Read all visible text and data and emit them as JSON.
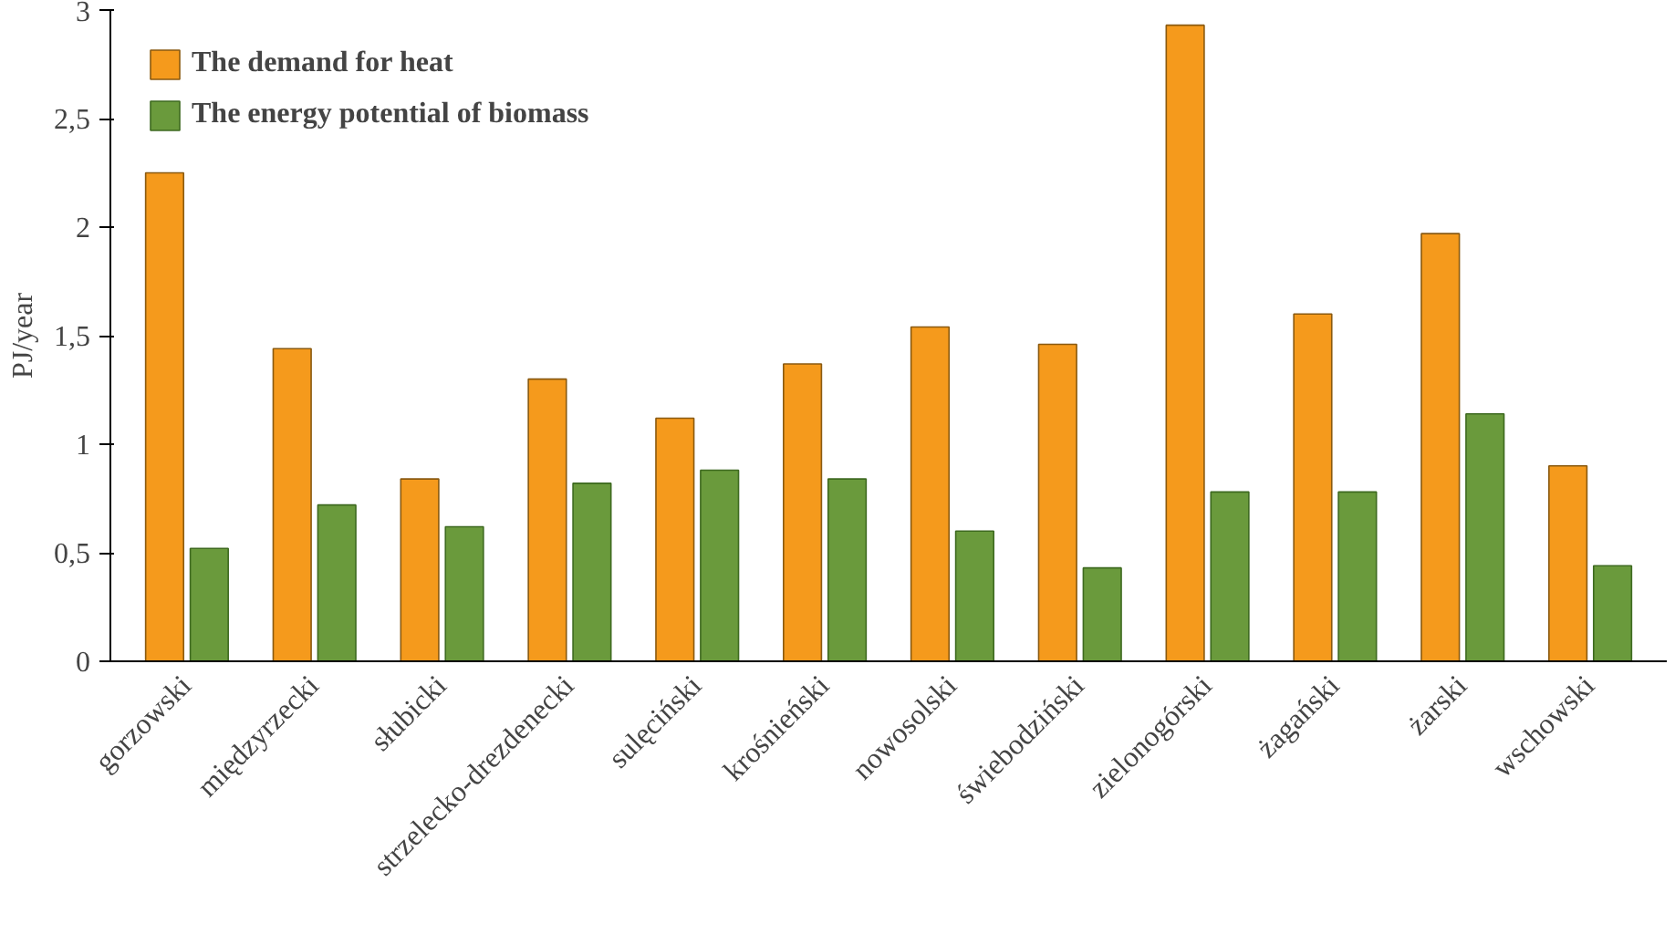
{
  "chart_data": {
    "type": "bar",
    "ylabel": "PJ/year",
    "categories": [
      "gorzowski",
      "międzyrzecki",
      "słubicki",
      "strzelecko-drezdenecki",
      "sulęciński",
      "krośnieński",
      "nowosolski",
      "świebodziński",
      "zielonogórski",
      "żagański",
      "żarski",
      "wschowski"
    ],
    "series": [
      {
        "name": "The demand for heat",
        "color": "#f59a1c",
        "values": [
          2.25,
          1.44,
          0.84,
          1.3,
          1.12,
          1.37,
          1.54,
          1.46,
          2.93,
          1.6,
          1.97,
          0.9
        ]
      },
      {
        "name": "The energy potential of biomass",
        "color": "#6a9a3c",
        "values": [
          0.52,
          0.72,
          0.62,
          0.82,
          0.88,
          0.84,
          0.6,
          0.43,
          0.78,
          0.78,
          1.14,
          0.44
        ]
      }
    ],
    "ylim": [
      0,
      3
    ],
    "yticks": [
      0,
      {
        "value": 0.5,
        "label": "0,5"
      },
      1,
      {
        "value": 1.5,
        "label": "1,5"
      },
      2,
      {
        "value": 2.5,
        "label": "2,5"
      },
      3
    ],
    "grid": false,
    "legend": "top left"
  }
}
